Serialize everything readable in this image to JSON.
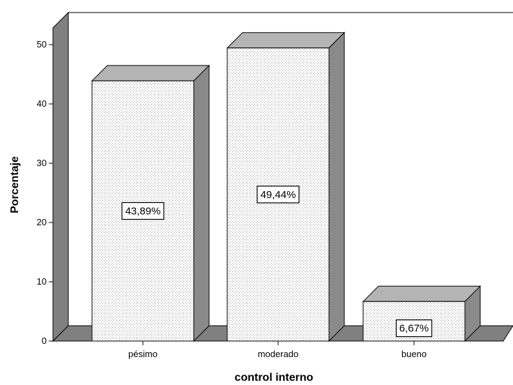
{
  "chart_data": {
    "type": "bar",
    "style": "3d",
    "categories": [
      "pésimo",
      "moderado",
      "bueno"
    ],
    "values": [
      43.89,
      49.44,
      6.67
    ],
    "data_labels": [
      "43,89%",
      "49,44%",
      "6,67%"
    ],
    "title": "",
    "xlabel": "control interno",
    "ylabel": "Porcentaje",
    "ylim": [
      0,
      55
    ],
    "yticks": [
      0,
      10,
      20,
      30,
      40,
      50
    ],
    "grid": false,
    "legend": "none",
    "colors": {
      "bar_front": "#ffffff",
      "bar_dots": "#9a9a9a",
      "bar_side": "#8a8a8a",
      "bar_top": "#b4b4b4",
      "wall_side": "#808080",
      "floor": "#808080",
      "line": "#000000"
    }
  }
}
